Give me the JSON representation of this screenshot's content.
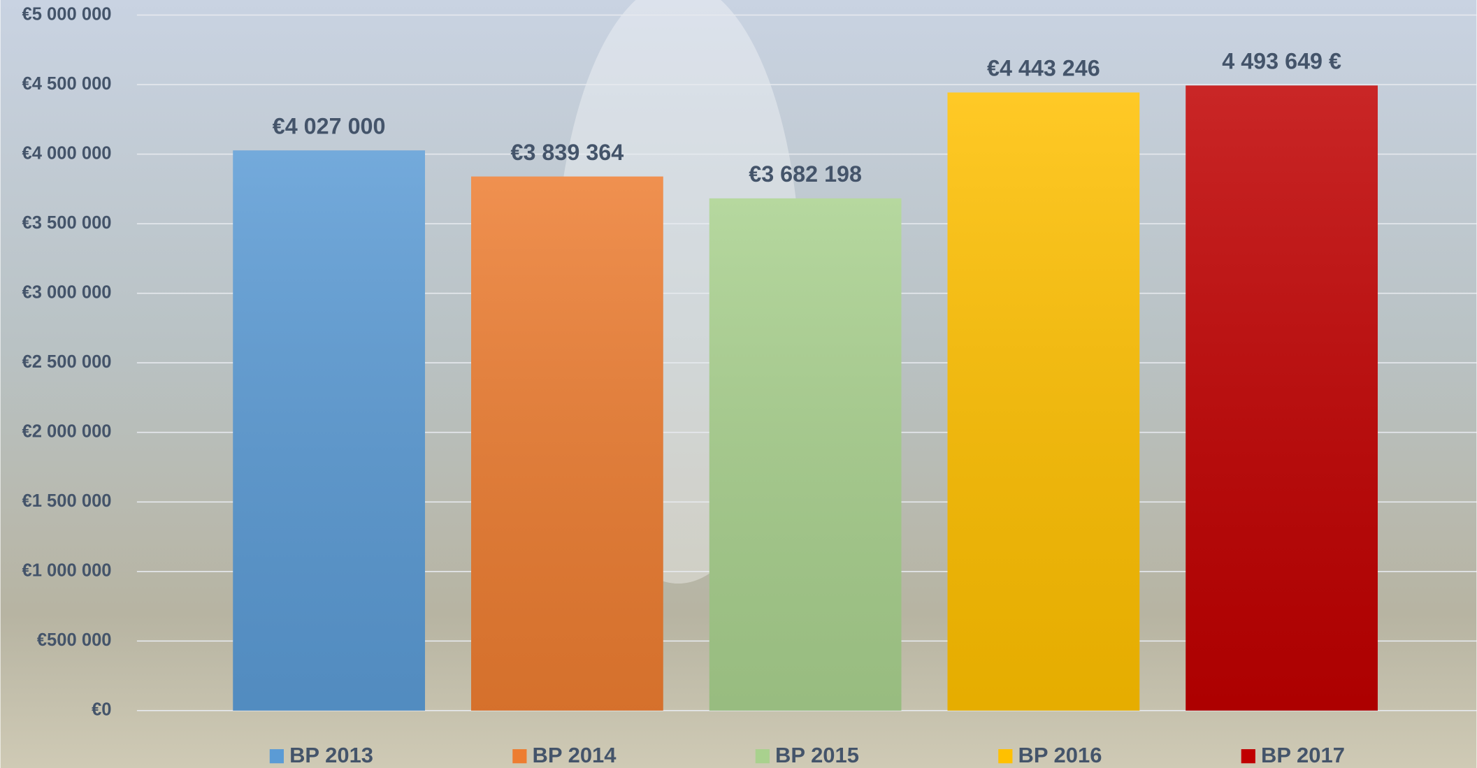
{
  "chart_data": {
    "type": "bar",
    "categories": [
      "BP 2013",
      "BP 2014",
      "BP 2015",
      "BP 2016",
      "BP 2017"
    ],
    "values": [
      4027000,
      3839364,
      3682198,
      4443246,
      4493649
    ],
    "value_labels": [
      "€4 027 000",
      "€3 839 364",
      "€3 682 198",
      "€4 443 246",
      "4 493 649 €"
    ],
    "colors": [
      "#5b9bd5",
      "#ed7d31",
      "#a9d18e",
      "#ffc000",
      "#c00000"
    ],
    "ylim": [
      0,
      5000000
    ],
    "yticks": [
      {
        "value": 0,
        "label": "€0"
      },
      {
        "value": 500000,
        "label": "€500 000"
      },
      {
        "value": 1000000,
        "label": "€1 000 000"
      },
      {
        "value": 1500000,
        "label": "€1 500 000"
      },
      {
        "value": 2000000,
        "label": "€2 000 000"
      },
      {
        "value": 2500000,
        "label": "€2 500 000"
      },
      {
        "value": 3000000,
        "label": "€3 000 000"
      },
      {
        "value": 3500000,
        "label": "€3 500 000"
      },
      {
        "value": 4000000,
        "label": "€4 000 000"
      },
      {
        "value": 4500000,
        "label": "€4 500 000"
      },
      {
        "value": 5000000,
        "label": "€5 000 000"
      }
    ],
    "grid": true,
    "legend": "bottom"
  }
}
